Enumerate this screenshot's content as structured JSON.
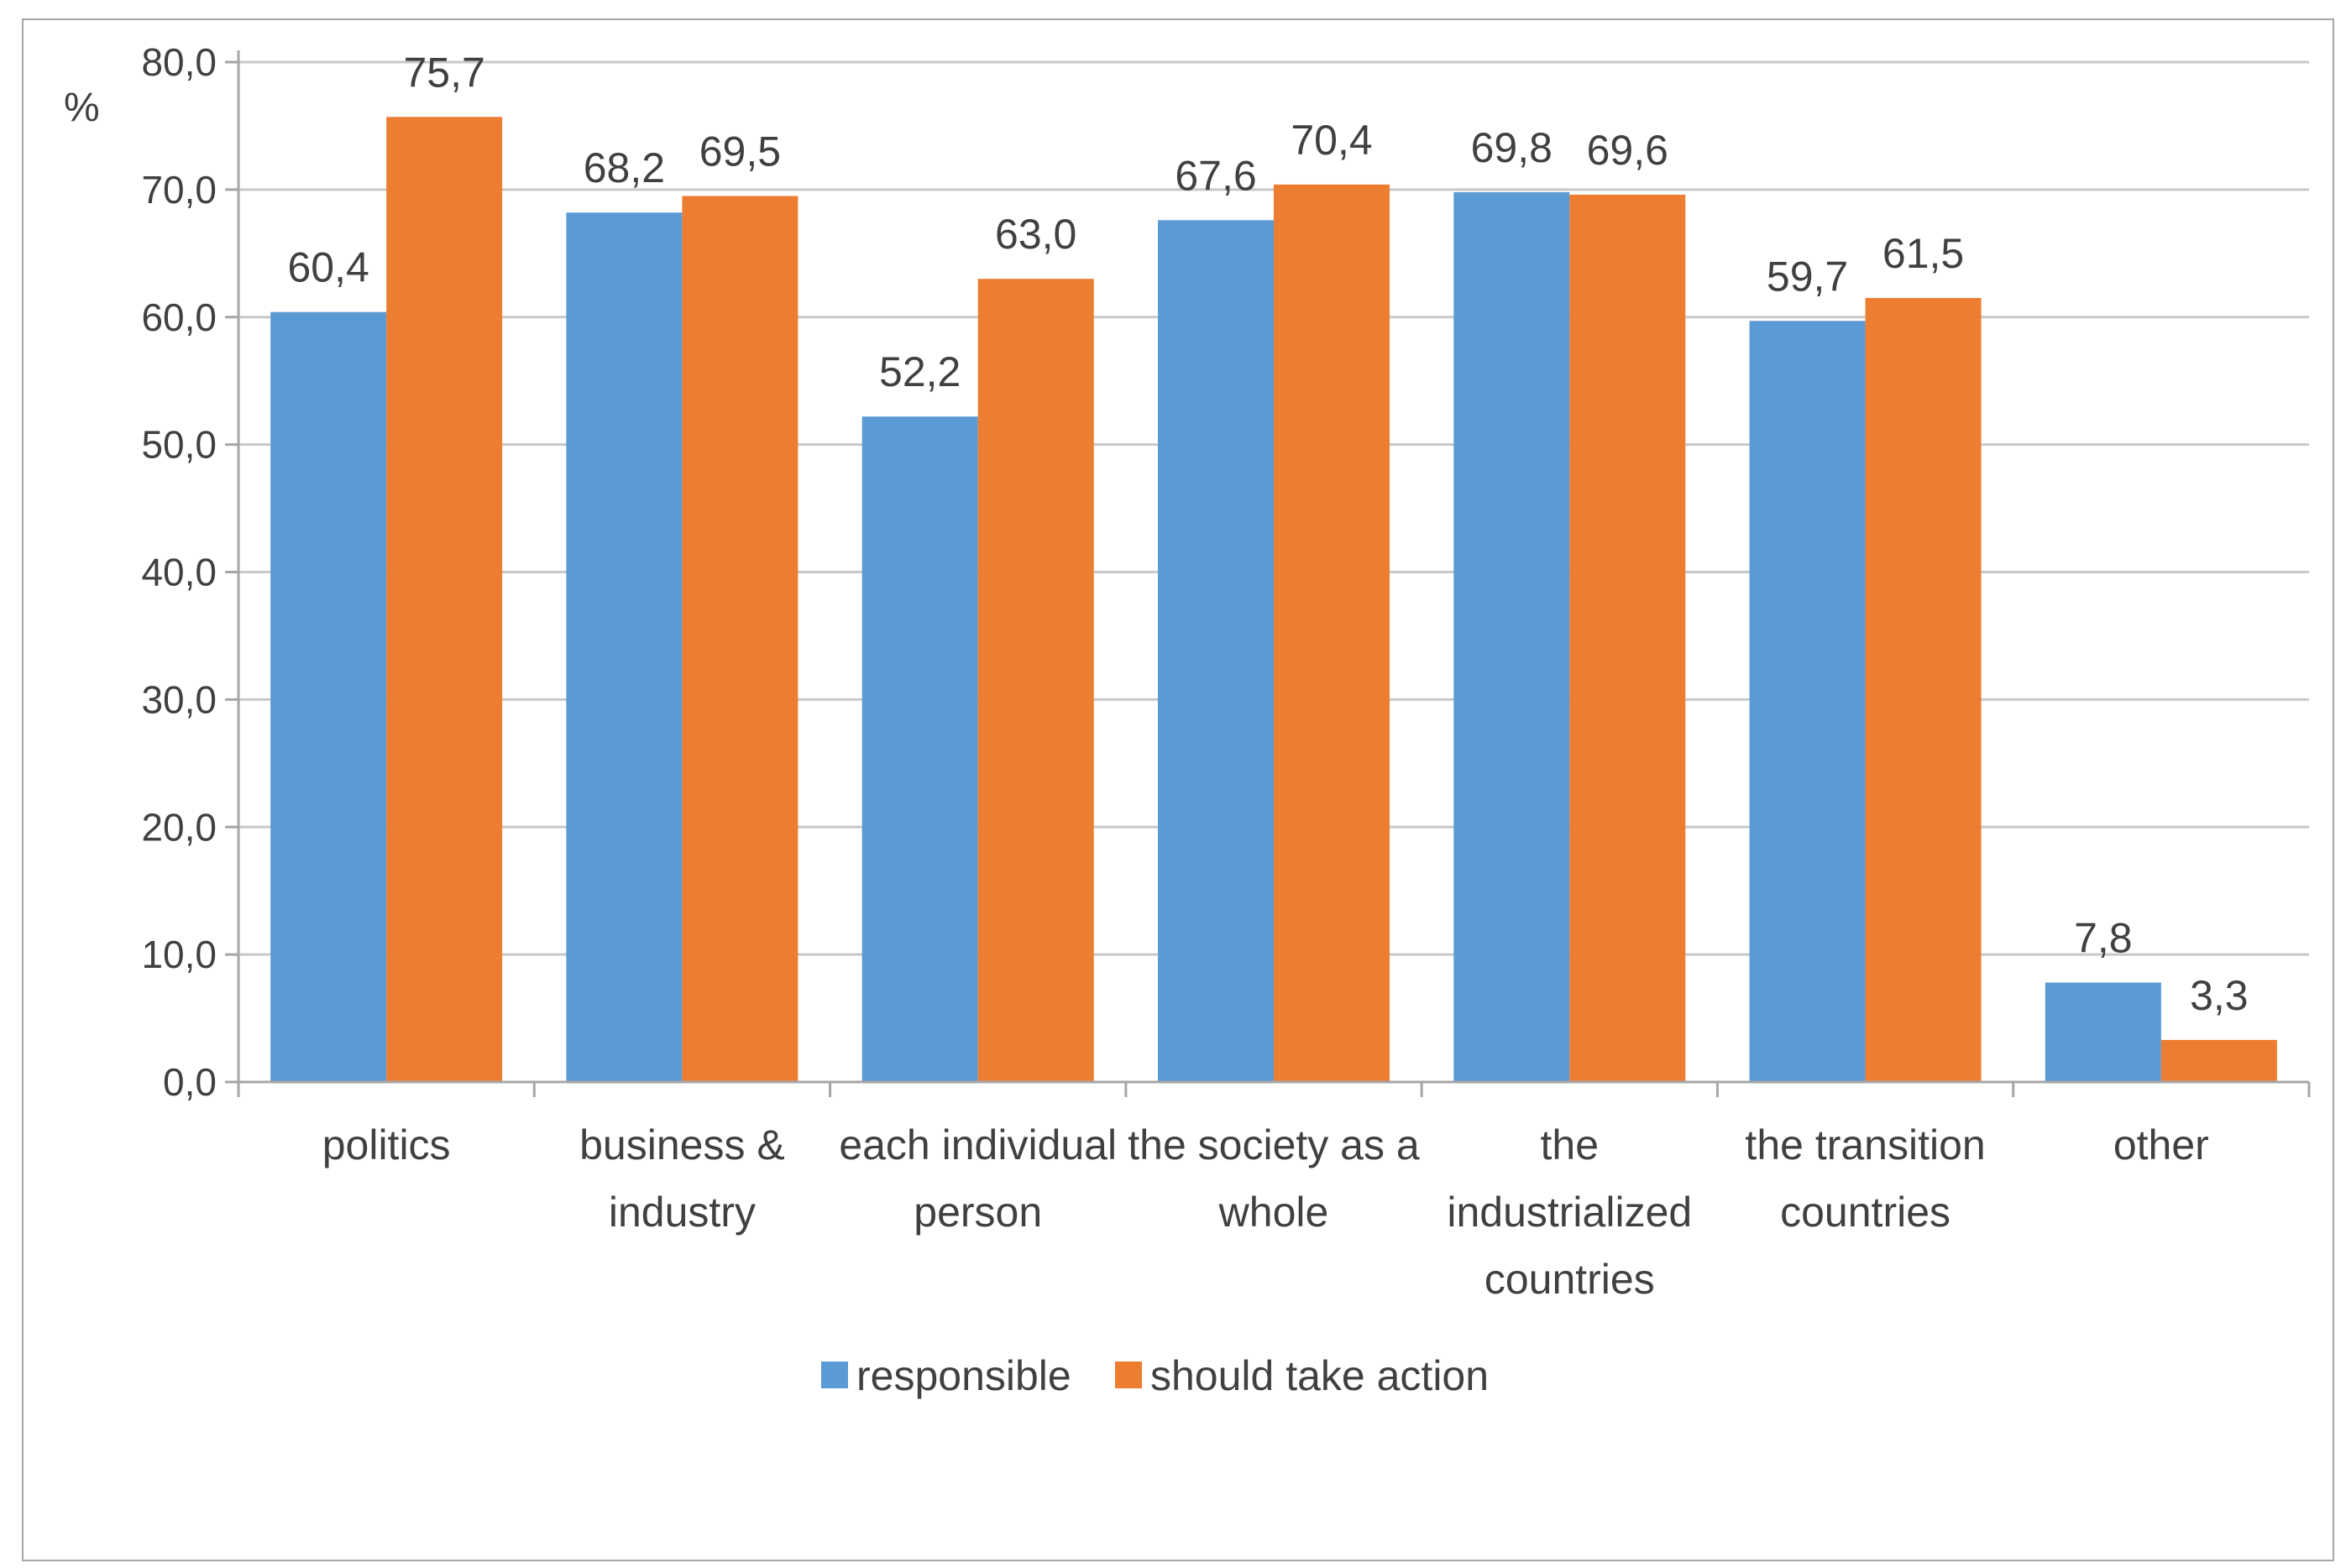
{
  "colors": {
    "responsible": "#5b9bd5",
    "should_take_action": "#ed7d31",
    "gridline": "#c8c8c8",
    "axis": "#a6a6a6",
    "frame": "#a6a6a6",
    "text": "#404040"
  },
  "chart_data": {
    "type": "bar",
    "title": "",
    "xlabel": "",
    "ylabel": "%",
    "ylim": [
      0,
      80
    ],
    "yticks": [
      "0,0",
      "10,0",
      "20,0",
      "30,0",
      "40,0",
      "50,0",
      "60,0",
      "70,0",
      "80,0"
    ],
    "grid": true,
    "legend_position": "bottom",
    "categories": [
      [
        "politics"
      ],
      [
        "business &",
        "industry"
      ],
      [
        "each individual",
        "person"
      ],
      [
        "the society as a",
        "whole"
      ],
      [
        "the",
        "industrialized",
        "countries"
      ],
      [
        "the transition",
        "countries"
      ],
      [
        "other"
      ]
    ],
    "series": [
      {
        "name": "responsible",
        "values": [
          60.4,
          68.2,
          52.2,
          67.6,
          69.8,
          59.7,
          7.8
        ],
        "labels": [
          "60,4",
          "68,2",
          "52,2",
          "67,6",
          "69,8",
          "59,7",
          "7,8"
        ]
      },
      {
        "name": "should take action",
        "values": [
          75.7,
          69.5,
          63.0,
          70.4,
          69.6,
          61.5,
          3.3
        ],
        "labels": [
          "75,7",
          "69,5",
          "63,0",
          "70,4",
          "69,6",
          "61,5",
          "3,3"
        ]
      }
    ]
  }
}
